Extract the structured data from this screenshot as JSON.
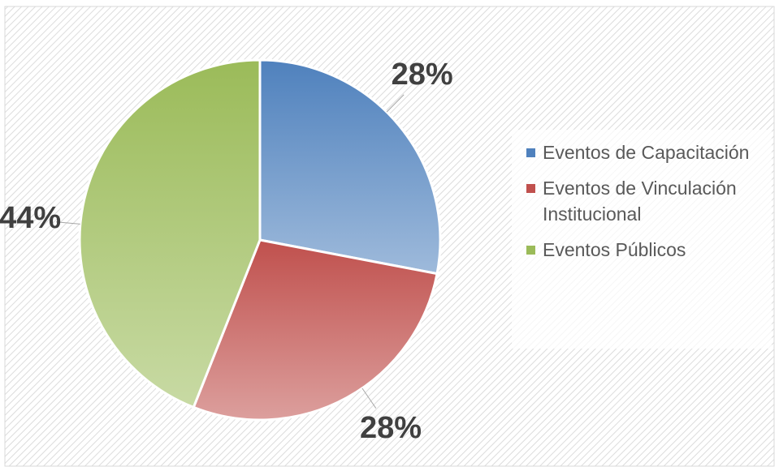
{
  "chart_data": {
    "type": "pie",
    "categories": [
      "Eventos de Capacitación",
      "Eventos de Vinculación Institucional",
      "Eventos Públicos"
    ],
    "values": [
      28,
      28,
      44
    ],
    "value_labels": [
      "28%",
      "28%",
      "44%"
    ],
    "colors": [
      "#4f81bd",
      "#c0504d",
      "#9bbb59"
    ],
    "legend": "right"
  }
}
